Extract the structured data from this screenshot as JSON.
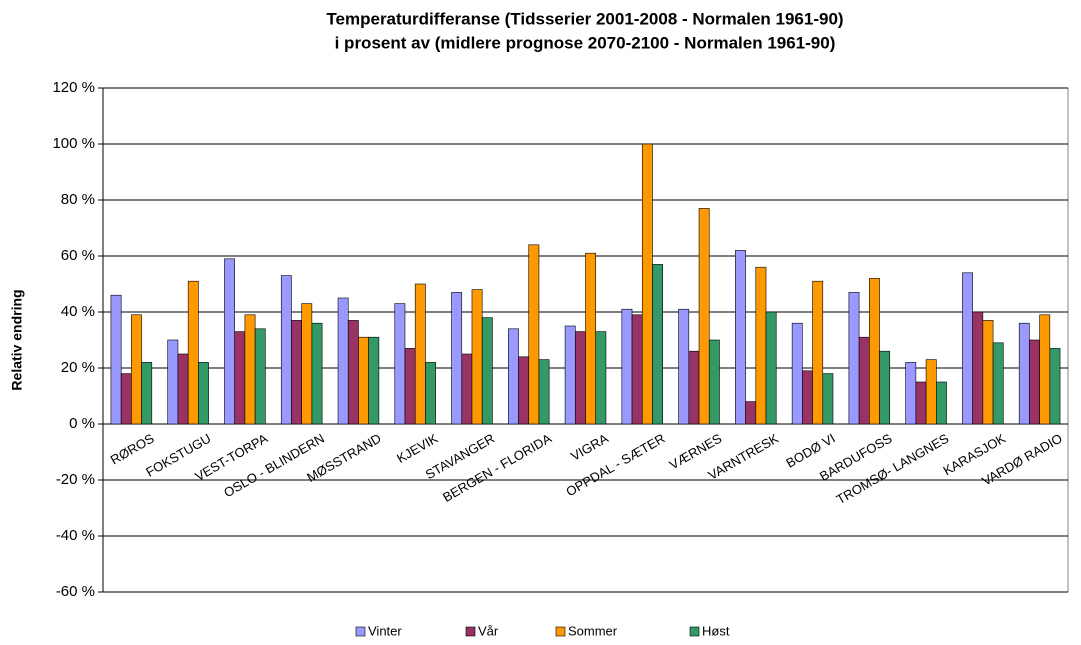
{
  "chart_data": {
    "type": "bar",
    "title": [
      "Temperaturdifferanse (Tidsserier 2001-2008 - Normalen 1961-90)",
      "i prosent av (midlere prognose 2070-2100 - Normalen 1961-90)"
    ],
    "ylabel": "Relativ endring",
    "categories": [
      "RØROS",
      "FOKSTUGU",
      "VEST-TORPA",
      "OSLO - BLINDERN",
      "MØSSTRAND",
      "KJEVIK",
      "STAVANGER",
      "BERGEN - FLORIDA",
      "VIGRA",
      "OPPDAL - SÆTER",
      "VÆRNES",
      "VARNTRESK",
      "BODØ VI",
      "BARDUFOSS",
      "TROMSØ- LANGNES",
      "KARASJOK",
      "VARDØ RADIO"
    ],
    "series": [
      {
        "name": "Vinter",
        "color": "#9999ff",
        "values": [
          46,
          30,
          59,
          53,
          45,
          43,
          47,
          34,
          35,
          41,
          41,
          62,
          36,
          47,
          22,
          54,
          36
        ]
      },
      {
        "name": "Vår",
        "color": "#993366",
        "values": [
          18,
          25,
          33,
          37,
          37,
          27,
          25,
          24,
          33,
          39,
          26,
          8,
          19,
          31,
          15,
          40,
          30
        ]
      },
      {
        "name": "Sommer",
        "color": "#ff9900",
        "values": [
          39,
          51,
          39,
          43,
          31,
          50,
          48,
          64,
          61,
          100,
          77,
          56,
          51,
          52,
          23,
          37,
          39
        ]
      },
      {
        "name": "Høst",
        "color": "#339966",
        "values": [
          22,
          22,
          34,
          36,
          31,
          22,
          38,
          23,
          33,
          57,
          30,
          40,
          18,
          26,
          15,
          29,
          27
        ]
      }
    ],
    "ylim": [
      -60,
      120
    ],
    "yticks": [
      {
        "value": -60,
        "label": "-60 %"
      },
      {
        "value": -40,
        "label": "-40 %"
      },
      {
        "value": -20,
        "label": "-20 %"
      },
      {
        "value": 0,
        "label": "0 %"
      },
      {
        "value": 20,
        "label": "20 %"
      },
      {
        "value": 40,
        "label": "40 %"
      },
      {
        "value": 60,
        "label": "60 %"
      },
      {
        "value": 80,
        "label": "80 %"
      },
      {
        "value": 100,
        "label": "100 %"
      },
      {
        "value": 120,
        "label": "120 %"
      }
    ],
    "grid": true,
    "legend": "bottom"
  }
}
